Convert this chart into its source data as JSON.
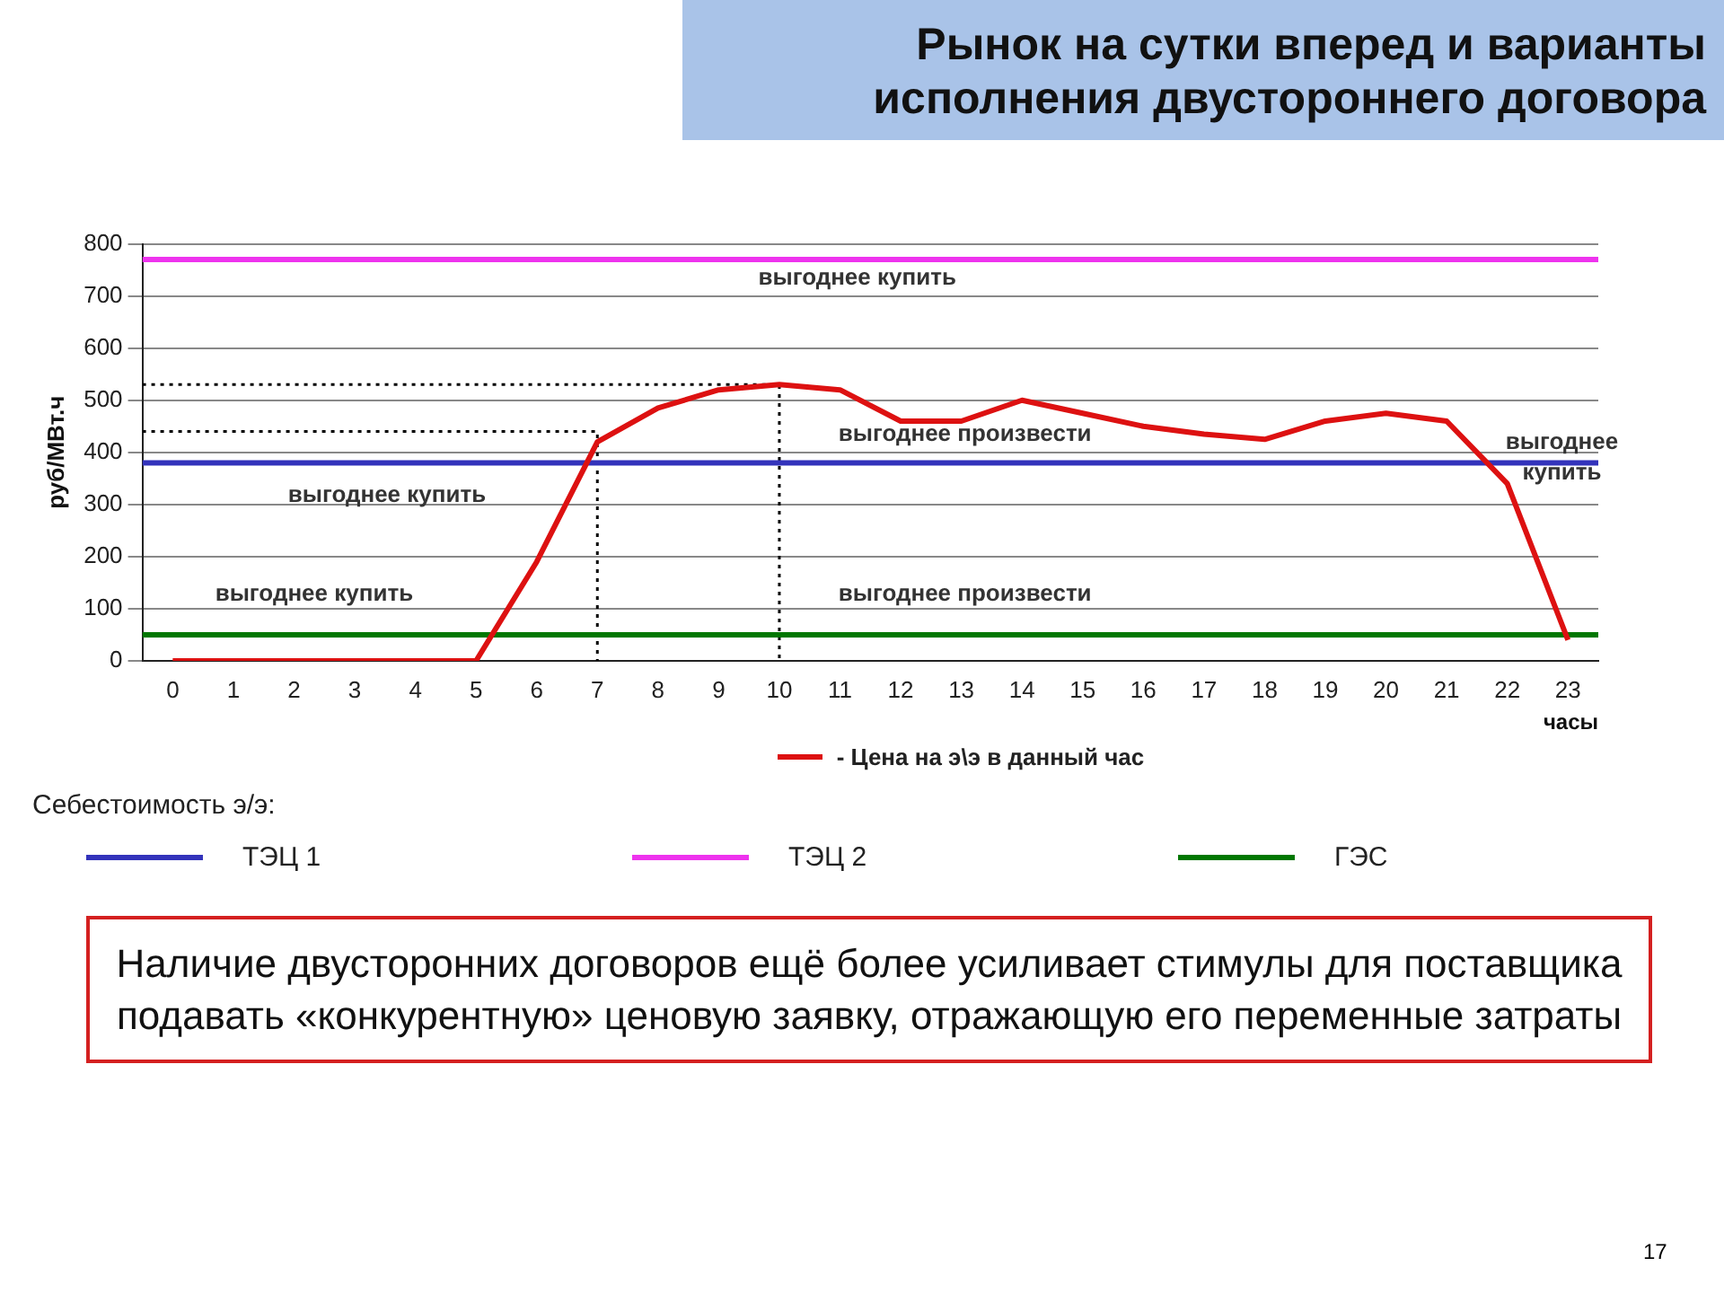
{
  "chart_data": {
    "type": "line",
    "title": "Рынок на сутки вперед и варианты исполнения двустороннего договора",
    "xlabel": "часы",
    "ylabel": "руб/МВт.ч",
    "legend_title": "Себестоимость э/э:",
    "x": [
      0,
      1,
      2,
      3,
      4,
      5,
      6,
      7,
      8,
      9,
      10,
      11,
      12,
      13,
      14,
      15,
      16,
      17,
      18,
      19,
      20,
      21,
      22,
      23
    ],
    "xlim": [
      -0.5,
      23.5
    ],
    "xticks": [
      0,
      1,
      2,
      3,
      4,
      5,
      6,
      7,
      8,
      9,
      10,
      11,
      12,
      13,
      14,
      15,
      16,
      17,
      18,
      19,
      20,
      21,
      22,
      23
    ],
    "ylim": [
      0,
      800
    ],
    "yticks": [
      0,
      100,
      200,
      300,
      400,
      500,
      600,
      700,
      800
    ],
    "grid": "y",
    "legend": "bottom",
    "marker": "none",
    "line_style": "solid",
    "series": [
      {
        "name": "- Цена на э\\э в данный час",
        "color": "#dd1111",
        "values": [
          0,
          0,
          0,
          0,
          0,
          0,
          190,
          420,
          485,
          520,
          530,
          520,
          460,
          460,
          500,
          475,
          450,
          435,
          425,
          460,
          475,
          460,
          340,
          40
        ]
      },
      {
        "name": "ТЭЦ 1",
        "color": "#3333bb",
        "x": [
          -0.5,
          23.5
        ],
        "values": [
          380,
          380
        ]
      },
      {
        "name": "ТЭЦ 2",
        "color": "#ee33ee",
        "x": [
          -0.5,
          23.5
        ],
        "values": [
          770,
          770
        ]
      },
      {
        "name": "ГЭС",
        "color": "#007700",
        "x": [
          -0.5,
          23.5
        ],
        "values": [
          50,
          50
        ]
      },
      {
        "color": "#000000",
        "line_style": "dotted",
        "x": [
          -0.5,
          7,
          7
        ],
        "values": [
          440,
          440,
          0
        ]
      },
      {
        "color": "#000000",
        "line_style": "dotted",
        "x": [
          -0.5,
          10,
          10
        ],
        "values": [
          530,
          530,
          0
        ]
      }
    ],
    "annotations": [
      "выгоднее купить",
      "выгоднее произвести",
      "выгоднее купить",
      "выгоднее купить",
      "выгоднее произвести",
      "выгоднее\nкупить",
      "Наличие двусторонних договоров ещё более усиливает стимулы для поставщика подавать «конкурентную» ценовую заявку, отражающую его переменные затраты",
      "17"
    ]
  }
}
